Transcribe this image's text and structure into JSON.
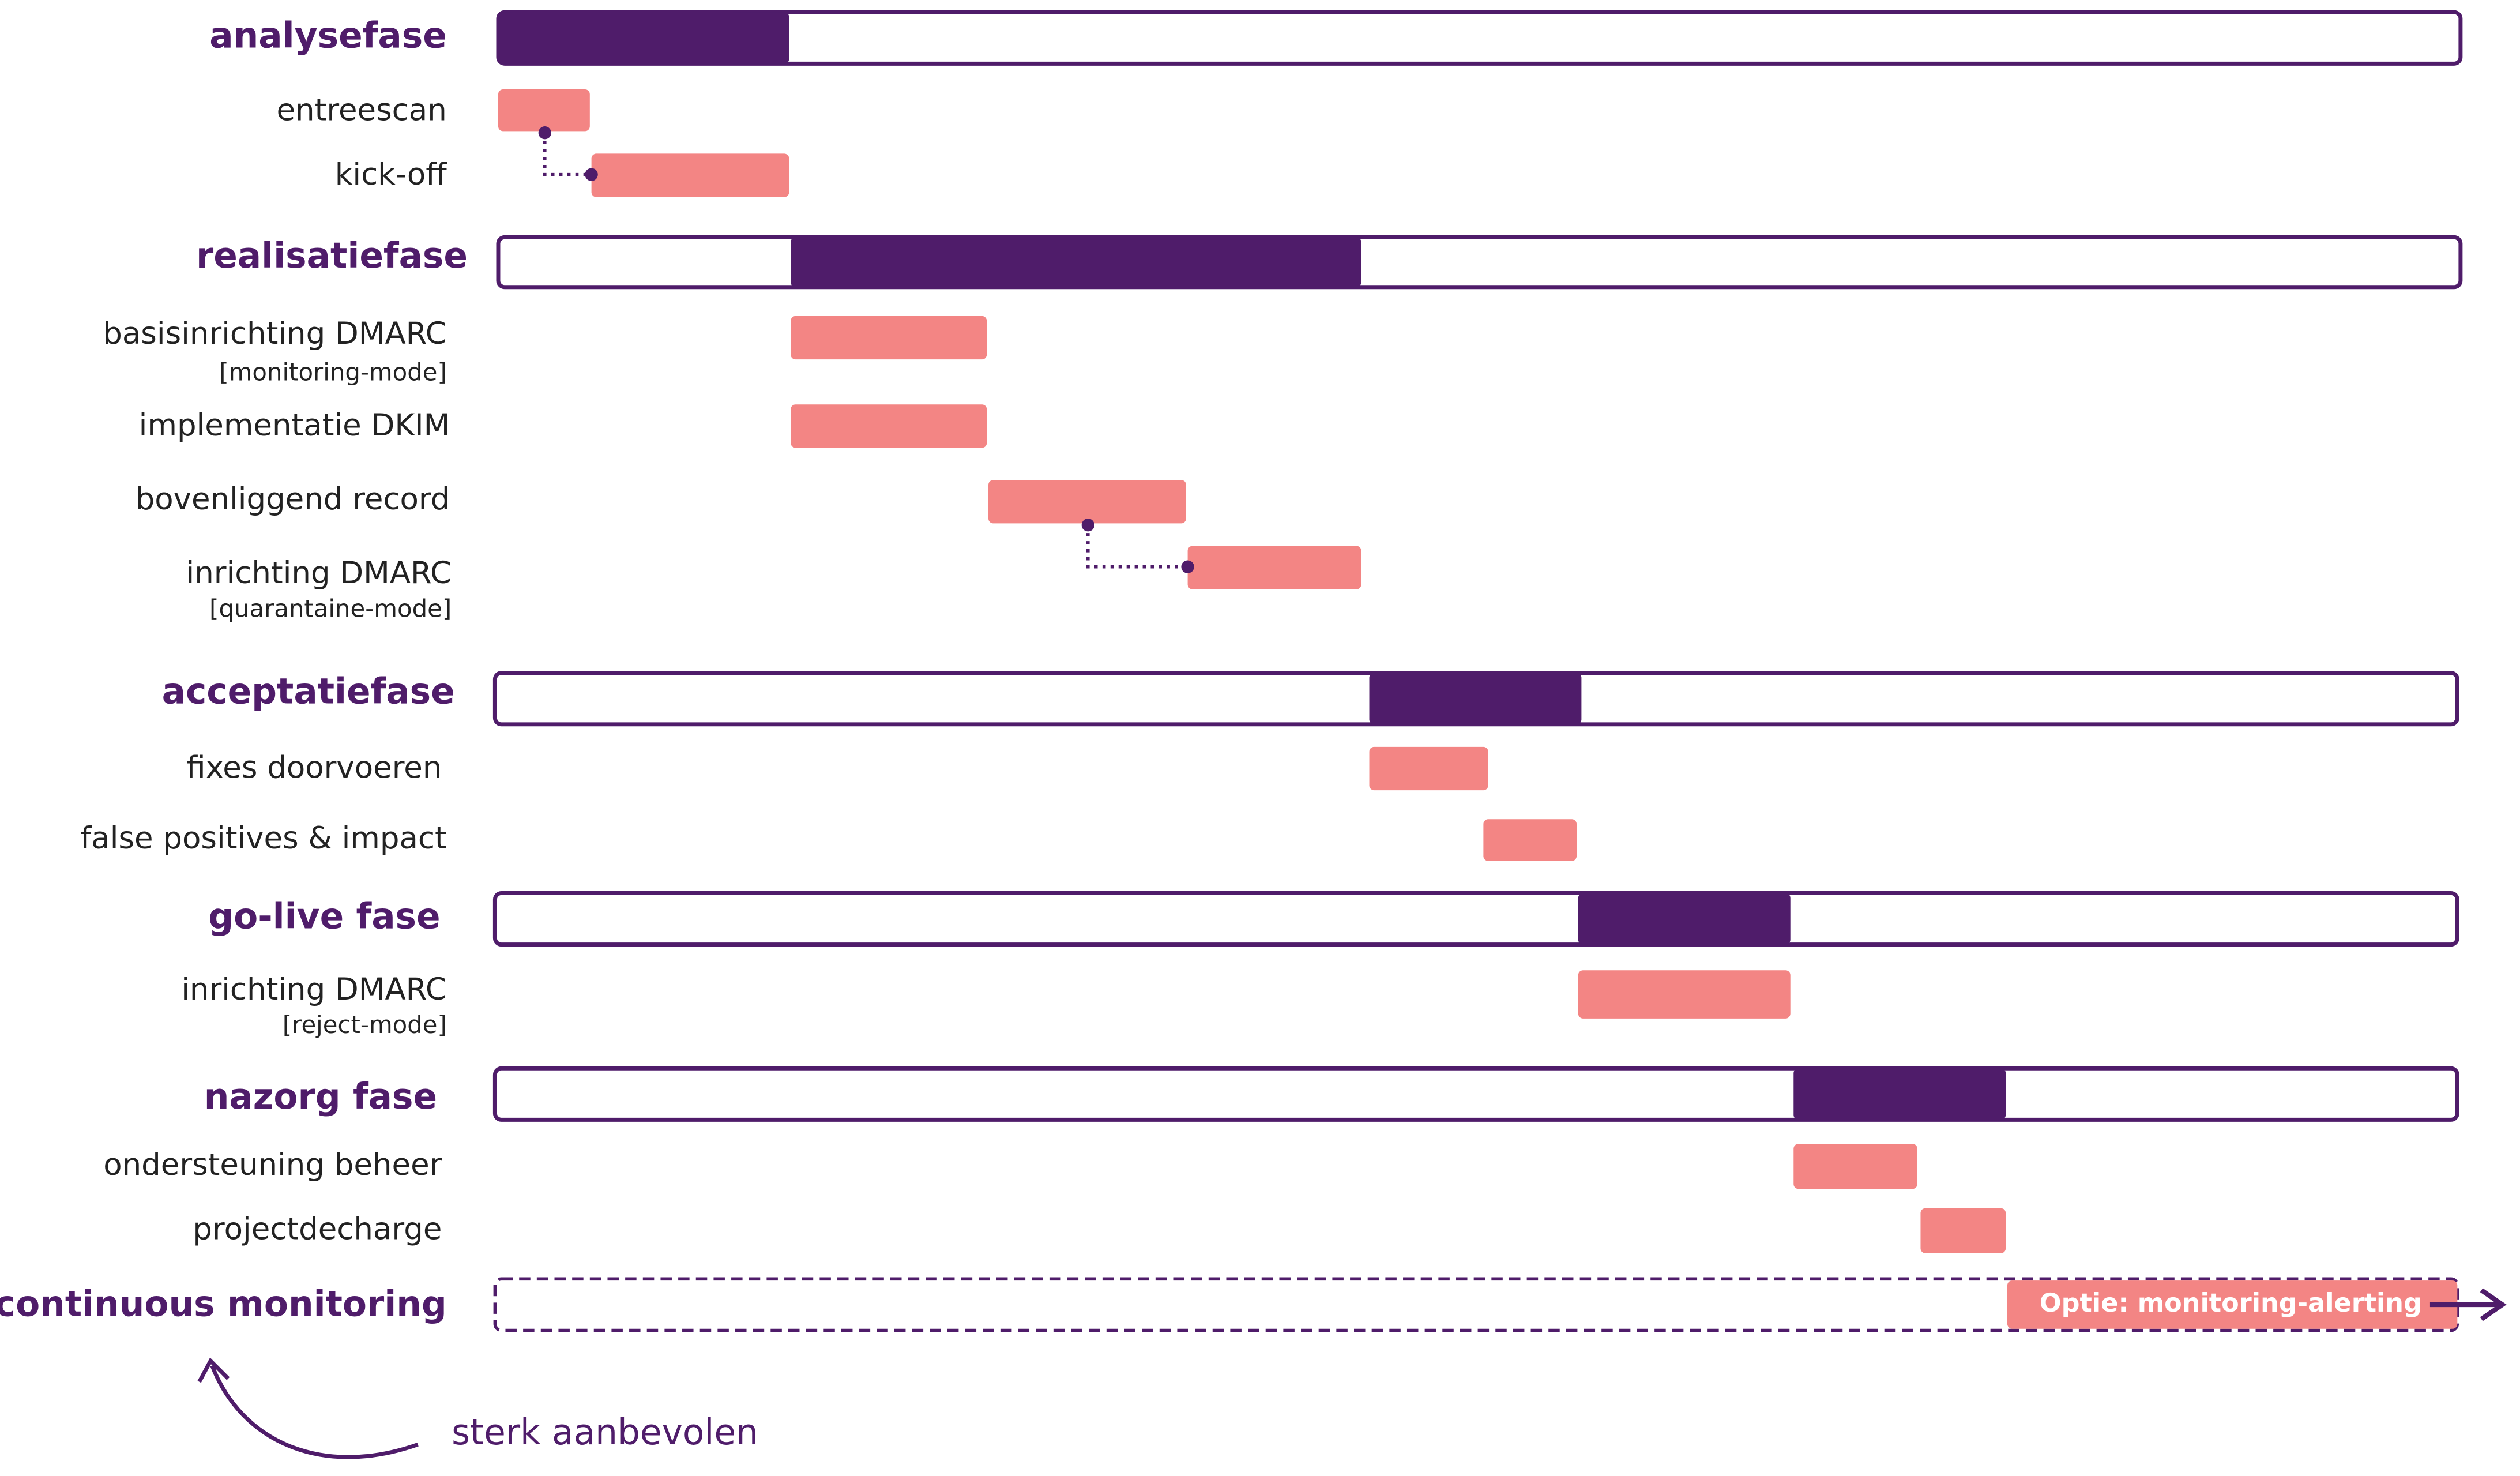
{
  "phases": [
    {
      "name": "analysefase",
      "tasks": [
        {
          "label": "entreescan"
        },
        {
          "label": "kick-off"
        }
      ]
    },
    {
      "name": "realisatiefase",
      "tasks": [
        {
          "label": "basisinrichting DMARC",
          "sublabel": "[monitoring-mode]"
        },
        {
          "label": "implementatie DKIM"
        },
        {
          "label": "bovenliggend record"
        },
        {
          "label": "inrichting DMARC",
          "sublabel": "[quarantaine-mode]"
        }
      ]
    },
    {
      "name": "acceptatiefase",
      "tasks": [
        {
          "label": "fixes doorvoeren"
        },
        {
          "label": "false positives & impact"
        }
      ]
    },
    {
      "name": "go-live fase",
      "tasks": [
        {
          "label": "inrichting DMARC",
          "sublabel": "[reject-mode]"
        }
      ]
    },
    {
      "name": "nazorg fase",
      "tasks": [
        {
          "label": "ondersteuning beheer"
        },
        {
          "label": "projectdecharge"
        }
      ]
    }
  ],
  "continuous_monitoring": {
    "name": "continuous monitoring",
    "option": "Optie: monitoring-alerting"
  },
  "annotation": "sterk aanbevolen"
}
